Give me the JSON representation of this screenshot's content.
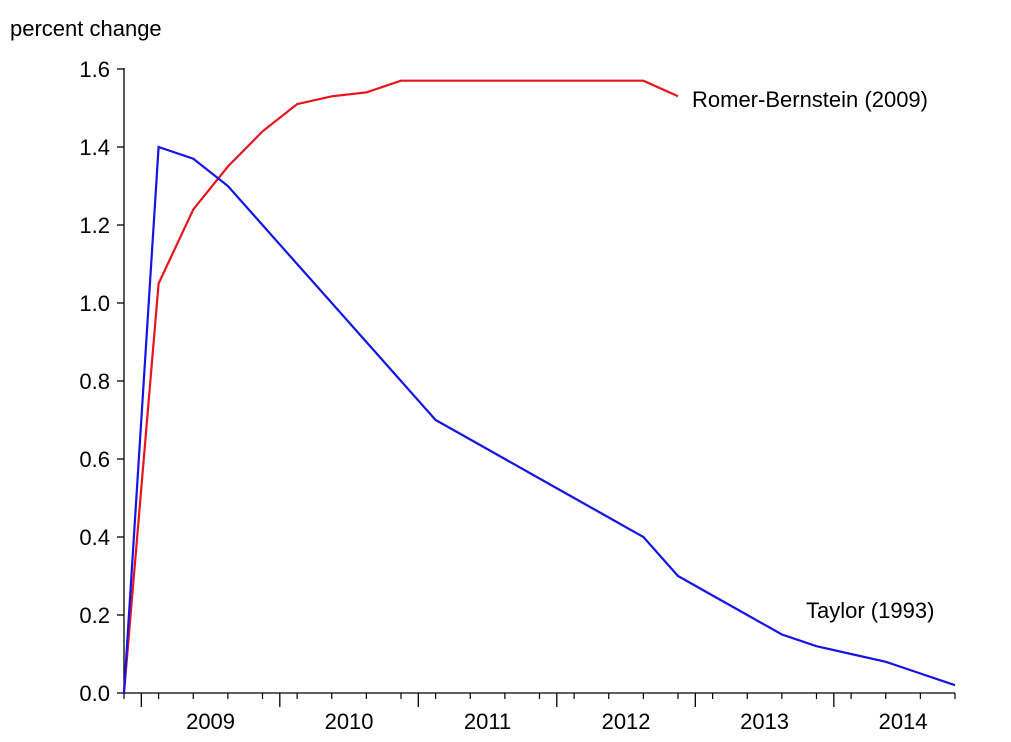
{
  "chart_data": {
    "type": "line",
    "title": "",
    "xlabel": "",
    "ylabel": "percent change",
    "ylim": [
      0.0,
      1.6
    ],
    "yticks": [
      "0.0",
      "0.2",
      "0.4",
      "0.6",
      "0.8",
      "1.0",
      "1.2",
      "1.4",
      "1.6"
    ],
    "xlim": [
      "2008Q4",
      "2014Q4"
    ],
    "year_labels": [
      "2009",
      "2010",
      "2011",
      "2012",
      "2013",
      "2014"
    ],
    "grid": false,
    "legend": "inline labels",
    "x": [
      "2008Q4",
      "2009Q1",
      "2009Q2",
      "2009Q3",
      "2009Q4",
      "2010Q1",
      "2010Q2",
      "2010Q3",
      "2010Q4",
      "2011Q1",
      "2011Q2",
      "2011Q3",
      "2011Q4",
      "2012Q1",
      "2012Q2",
      "2012Q3",
      "2012Q4",
      "2013Q1",
      "2013Q2",
      "2013Q3",
      "2013Q4",
      "2014Q1",
      "2014Q2",
      "2014Q3",
      "2014Q4"
    ],
    "series": [
      {
        "name": "Romer-Bernstein (2009)",
        "color": "#e8141c",
        "values": [
          0.0,
          1.05,
          1.24,
          1.35,
          1.44,
          1.51,
          1.53,
          1.54,
          1.57,
          1.57,
          1.57,
          1.57,
          1.57,
          1.57,
          1.57,
          1.57,
          1.53,
          null,
          null,
          null,
          null,
          null,
          null,
          null,
          null
        ]
      },
      {
        "name": "Taylor (1993)",
        "color": "#1414e6",
        "values": [
          0.0,
          1.4,
          1.37,
          1.3,
          1.2,
          1.1,
          1.0,
          0.9,
          0.8,
          0.7,
          0.65,
          0.6,
          0.55,
          0.5,
          0.45,
          0.4,
          0.3,
          0.25,
          0.2,
          0.15,
          0.12,
          0.1,
          0.08,
          0.05,
          0.02
        ]
      }
    ]
  }
}
